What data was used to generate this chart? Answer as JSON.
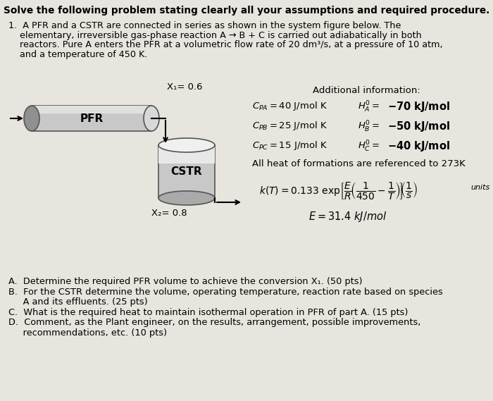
{
  "bg_color": "#e8e4de",
  "title_text": "Solve the following problem stating clearly all your assumptions and required procedure.",
  "problem_lines": [
    "1.  A PFR and a CSTR are connected in series as shown in the system figure below. The",
    "    elementary, irreversible gas-phase reaction A → B + C is carried out adiabatically in both",
    "    reactors. Pure A enters the PFR at a volumetric flow rate of 20 dm³/s, at a pressure of 10 atm,",
    "    and a temperature of 450 K."
  ],
  "additional_info": "Additional information:",
  "x1_label": "X₁= 0.6",
  "x2_label": "X₂= 0.8",
  "pfr_label": "PFR",
  "cstr_label": "CSTR",
  "formations_text": "All heat of formations are referenced to 273K",
  "E_text": "E = 31.4 kJ/mol",
  "question_lines": [
    "A.  Determine the required PFR volume to achieve the conversion X₁. (50 pts)",
    "B.  For the CSTR determine the volume, operating temperature, reaction rate based on species",
    "     A and its effluents. (25 pts)",
    "C.  What is the required heat to maintain isothermal operation in PFR of part A. (15 pts)",
    "D.  Comment, as the Plant engineer, on the results, arrangement, possible improvements,",
    "     recommendations, etc. (10 pts)"
  ]
}
